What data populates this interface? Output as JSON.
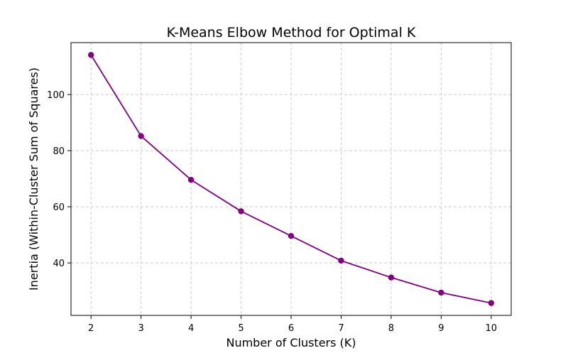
{
  "chart_data": {
    "type": "line",
    "title": "K-Means Elbow Method for Optimal K",
    "xlabel": "Number of Clusters (K)",
    "ylabel": "Inertia (Within-Cluster Sum of Squares)",
    "x": [
      2,
      3,
      4,
      5,
      6,
      7,
      8,
      9,
      10
    ],
    "series": [
      {
        "values": [
          114.1,
          85.2,
          69.6,
          58.4,
          49.6,
          40.8,
          34.8,
          29.4,
          25.7
        ],
        "color": "#800080",
        "marker": "circle"
      }
    ],
    "xlim": [
      1.6,
      10.4
    ],
    "ylim": [
      21.3,
      118.5
    ],
    "xticks": [
      2,
      3,
      4,
      5,
      6,
      7,
      8,
      9,
      10
    ],
    "yticks": [
      40,
      60,
      80,
      100
    ],
    "grid": true,
    "grid_style": "dashed"
  }
}
